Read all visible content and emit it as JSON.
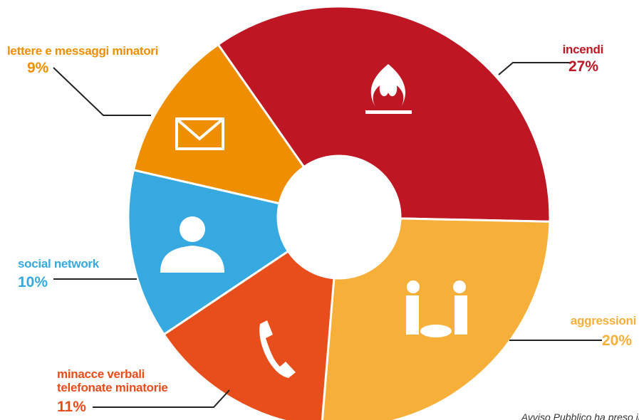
{
  "chart_data": {
    "type": "donut",
    "categories": [
      "incendi",
      "aggressioni",
      "minacce verbali\ntelefonate minatorie",
      "social network",
      "lettere e messaggi minatori"
    ],
    "values": [
      27,
      20,
      11,
      10,
      9
    ],
    "value_labels": [
      "27%",
      "20%",
      "11%",
      "10%",
      "9%"
    ],
    "colors": [
      "#be1622",
      "#f6b03a",
      "#e84e1b",
      "#36a9e1",
      "#ef8f00"
    ],
    "source_note": "Avviso Pubblico ha preso in cons"
  }
}
